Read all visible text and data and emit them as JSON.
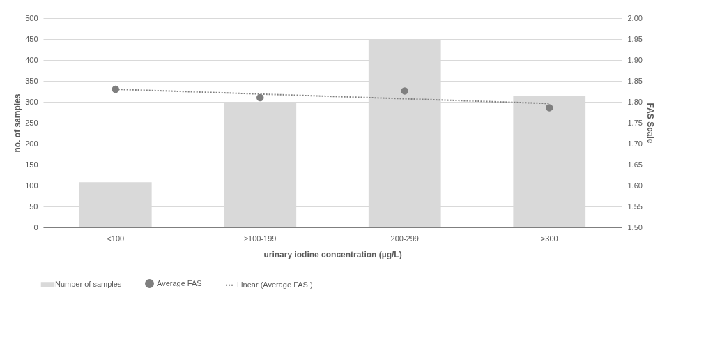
{
  "chart_data": {
    "type": "bar",
    "xlabel": "urinary iodine  concentration  (µg/L)",
    "ylabel": "no. of samples",
    "y2label": "FAS Scale",
    "categories": [
      "<100",
      "≥100-199",
      "200-299",
      ">300"
    ],
    "series": [
      {
        "name": "Number of samples",
        "color": "#d9d9d9",
        "values": [
          108,
          300,
          450,
          314
        ]
      },
      {
        "name": "Average FAS",
        "type": "scatter",
        "axis": "y2",
        "color": "#7f7f7f",
        "marker": "circle",
        "values": [
          1.83,
          1.81,
          1.826,
          1.786
        ]
      },
      {
        "name": "Linear (Average FAS )",
        "type": "line",
        "axis": "y2",
        "color": "#7f7f7f",
        "line_style": "dotted",
        "x": [
          "<100",
          ">300"
        ],
        "values": [
          1.83,
          1.796
        ]
      }
    ],
    "ylim": [
      0,
      500
    ],
    "yticks": [
      0,
      50,
      100,
      150,
      200,
      250,
      300,
      350,
      400,
      450,
      500
    ],
    "y2lim": [
      1.5,
      2.0
    ],
    "y2ticks": [
      {
        "value": 1.5,
        "label": "1.50"
      },
      {
        "value": 1.55,
        "label": "1.55"
      },
      {
        "value": 1.6,
        "label": "1.60"
      },
      {
        "value": 1.65,
        "label": "1.65"
      },
      {
        "value": 1.7,
        "label": "1.70"
      },
      {
        "value": 1.75,
        "label": "1.75"
      },
      {
        "value": 1.8,
        "label": "1.80"
      },
      {
        "value": 1.85,
        "label": "1.85"
      },
      {
        "value": 1.9,
        "label": "1.90"
      },
      {
        "value": 1.95,
        "label": "1.95"
      },
      {
        "value": 2.0,
        "label": "2.00"
      }
    ],
    "grid": "y",
    "legend": "bottom"
  }
}
